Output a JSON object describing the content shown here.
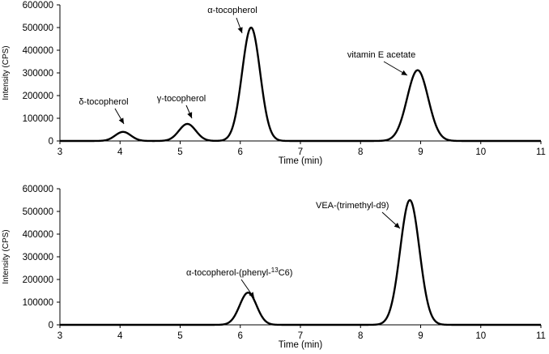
{
  "chart_data": [
    {
      "type": "line",
      "name": "top-panel",
      "xlabel": "Time (min)",
      "ylabel": "Intensity (CPS)",
      "xlim": [
        3,
        11
      ],
      "ylim": [
        0,
        600000
      ],
      "x_ticks": [
        3,
        4,
        5,
        6,
        7,
        8,
        9,
        10,
        11
      ],
      "y_ticks": [
        0,
        100000,
        200000,
        300000,
        400000,
        500000,
        600000
      ],
      "peaks": [
        {
          "label": "δ-tocopherol",
          "rt": 4.05,
          "height": 40000,
          "width": 0.13
        },
        {
          "label": "γ-tocopherol",
          "rt": 5.12,
          "height": 75000,
          "width": 0.14
        },
        {
          "label": "α-tocopherol",
          "rt": 6.18,
          "height": 500000,
          "width": 0.15
        },
        {
          "label": "vitamin E acetate",
          "rt": 8.95,
          "height": 312000,
          "width": 0.175
        }
      ]
    },
    {
      "type": "line",
      "name": "bottom-panel",
      "xlabel": "Time (min)",
      "ylabel": "Intensity (CPS)",
      "xlim": [
        3,
        11
      ],
      "ylim": [
        0,
        600000
      ],
      "x_ticks": [
        3,
        4,
        5,
        6,
        7,
        8,
        9,
        10,
        11
      ],
      "y_ticks": [
        0,
        100000,
        200000,
        300000,
        400000,
        500000,
        600000
      ],
      "peaks": [
        {
          "label": "α-tocopherol-(phenyl-",
          "label_sup": "13",
          "label_tail": "C6)",
          "rt": 6.13,
          "height": 142000,
          "width": 0.14
        },
        {
          "label": "VEA-(trimethyl-d9)",
          "rt": 8.82,
          "height": 550000,
          "width": 0.16
        }
      ]
    }
  ]
}
